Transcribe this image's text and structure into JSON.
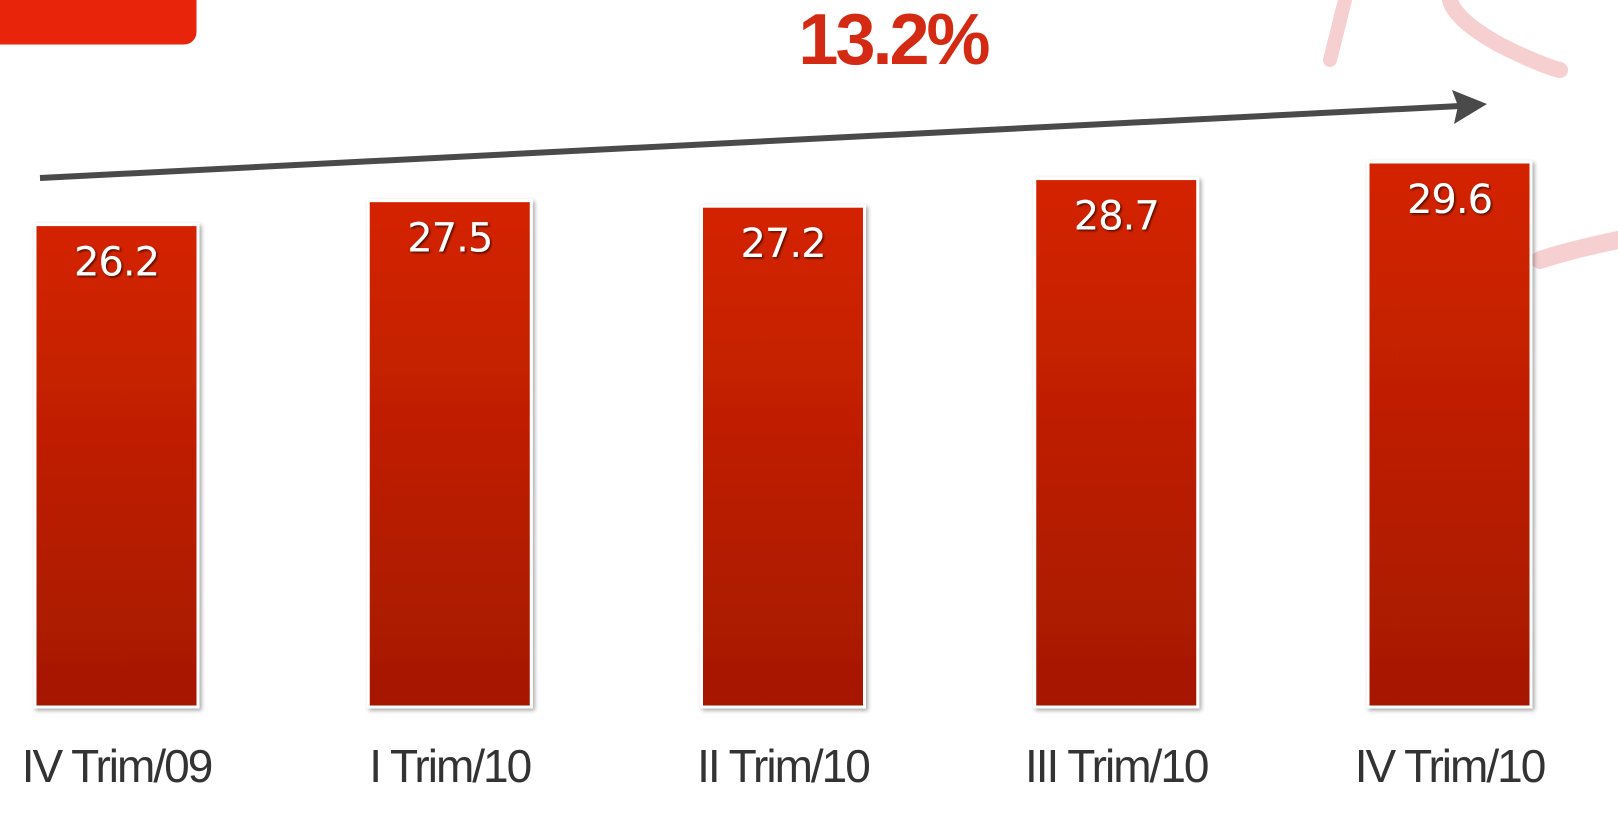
{
  "chart_data": {
    "type": "bar",
    "annotation": "13.2%",
    "categories": [
      "IV Trim/09",
      "I Trim/10",
      "II Trim/10",
      "III Trim/10",
      "IV Trim/10"
    ],
    "values": [
      26.2,
      27.5,
      27.2,
      28.7,
      29.6
    ],
    "color": "#c42000"
  }
}
